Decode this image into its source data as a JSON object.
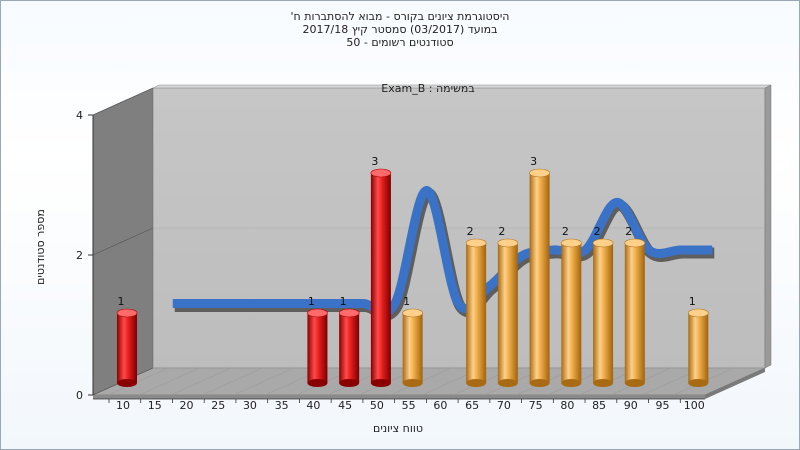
{
  "titles": {
    "line1": "היסטוגרמת ציונים בקורס - מבוא להסתברות ח'",
    "line2": "במועד (03/2017) סמסטר קיץ 2017/18",
    "line3": "סטודנטים רשומים - 50"
  },
  "chart_data": {
    "type": "bar",
    "title": "היסטוגרמת ציונים בקורס - מבוא להסתברות ח'",
    "annotation": "Exam_B : במשימה",
    "xlabel": "טווח ציונים",
    "ylabel": "מספר סטודנטים",
    "categories": [
      "10",
      "15",
      "20",
      "25",
      "30",
      "35",
      "40",
      "45",
      "50",
      "55",
      "60",
      "65",
      "70",
      "75",
      "80",
      "85",
      "90",
      "95",
      "100"
    ],
    "values": [
      1,
      0,
      0,
      0,
      0,
      0,
      1,
      1,
      3,
      1,
      0,
      2,
      2,
      3,
      2,
      2,
      2,
      0,
      1
    ],
    "bar_colors": [
      "#e02020",
      "#e02020",
      "#e02020",
      "#e02020",
      "#e02020",
      "#e02020",
      "#e02020",
      "#e02020",
      "#e02020",
      "#e8a640",
      "#e8a640",
      "#e8a640",
      "#e8a640",
      "#e8a640",
      "#e8a640",
      "#e8a640",
      "#e8a640",
      "#e8a640",
      "#e8a640"
    ],
    "yticks": [
      0,
      2,
      4
    ],
    "ylim": [
      0,
      4
    ],
    "curve_series": {
      "x": [
        "15",
        "20",
        "25",
        "30",
        "35",
        "40",
        "45",
        "50",
        "55",
        "60",
        "65",
        "70",
        "75",
        "80",
        "85",
        "90",
        "95",
        "100"
      ],
      "values": [
        1,
        1,
        1,
        1,
        1,
        1,
        1,
        1,
        2.9,
        1,
        1.3,
        1.8,
        1.9,
        1.9,
        2.7,
        1.9,
        1.9,
        1.9
      ]
    },
    "grid": true,
    "colors": {
      "wall": "#c0c0c0",
      "side_wall": "#7f7f7f",
      "floor": "#a9a9a9",
      "curve": "#3a72c8",
      "curve_back": "#5e5e5e"
    }
  }
}
